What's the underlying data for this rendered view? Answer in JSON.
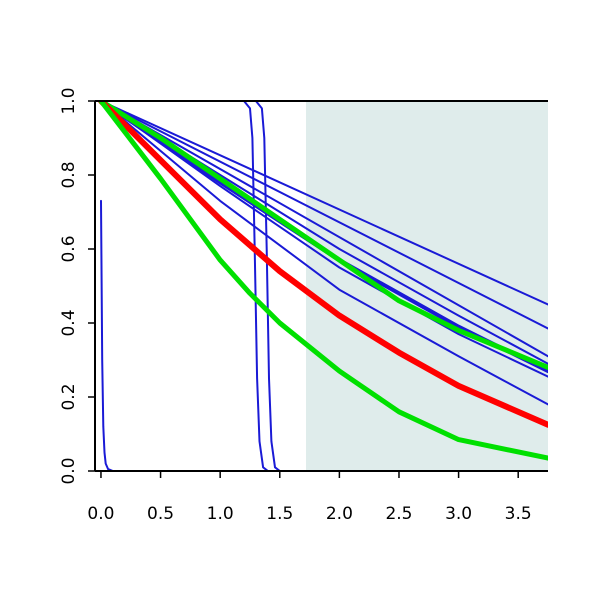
{
  "chart_data": {
    "type": "line",
    "title": "",
    "xlabel": "",
    "ylabel": "",
    "xlim": [
      -0.05,
      3.75
    ],
    "ylim": [
      0.0,
      1.0
    ],
    "grid": false,
    "x_ticks": [
      "0.0",
      "0.5",
      "1.0",
      "1.5",
      "2.0",
      "2.5",
      "3.0",
      "3.5"
    ],
    "y_ticks": [
      "0.0",
      "0.2",
      "0.4",
      "0.6",
      "0.8",
      "1.0"
    ],
    "shaded_region": {
      "x_from": 1.72,
      "x_to": 3.75,
      "color": "#dfeceb"
    },
    "colors": {
      "blue": "#1a1ad6",
      "red": "#ff0000",
      "green": "#00e000"
    },
    "series": [
      {
        "color": "blue",
        "width": 2,
        "x": [
          0.0,
          3.75
        ],
        "y": [
          1.0,
          0.45
        ]
      },
      {
        "color": "blue",
        "width": 2,
        "x": [
          0.0,
          3.75
        ],
        "y": [
          1.0,
          0.385
        ]
      },
      {
        "color": "blue",
        "width": 2,
        "x": [
          0.0,
          3.75
        ],
        "y": [
          1.0,
          0.31
        ]
      },
      {
        "color": "blue",
        "width": 2,
        "x": [
          0.0,
          1.0,
          2.0,
          3.0,
          3.75
        ],
        "y": [
          1.0,
          0.8,
          0.6,
          0.42,
          0.29
        ]
      },
      {
        "color": "blue",
        "width": 4,
        "x": [
          0.0,
          1.0,
          2.0,
          3.0,
          3.75
        ],
        "y": [
          1.0,
          0.78,
          0.57,
          0.39,
          0.27
        ]
      },
      {
        "color": "blue",
        "width": 2,
        "x": [
          0.0,
          1.0,
          2.0,
          3.0,
          3.75
        ],
        "y": [
          1.0,
          0.77,
          0.55,
          0.37,
          0.255
        ]
      },
      {
        "color": "blue",
        "width": 2,
        "x": [
          0.0,
          1.0,
          2.0,
          3.0,
          3.75
        ],
        "y": [
          1.0,
          0.73,
          0.49,
          0.31,
          0.18
        ]
      },
      {
        "color": "blue",
        "width": 2,
        "x": [
          0.0,
          0.01,
          0.02,
          0.03,
          0.04,
          0.06,
          0.1,
          3.75
        ],
        "y": [
          0.73,
          0.3,
          0.12,
          0.05,
          0.02,
          0.005,
          0.0,
          0.0
        ]
      },
      {
        "color": "blue",
        "width": 2,
        "x": [
          0.0,
          1.2,
          1.25,
          1.27,
          1.29,
          1.31,
          1.33,
          1.36,
          1.4,
          3.75
        ],
        "y": [
          1.0,
          1.0,
          0.98,
          0.9,
          0.6,
          0.25,
          0.08,
          0.01,
          0.0,
          0.0
        ]
      },
      {
        "color": "blue",
        "width": 2,
        "x": [
          0.0,
          1.3,
          1.35,
          1.37,
          1.39,
          1.41,
          1.43,
          1.46,
          1.5,
          3.75
        ],
        "y": [
          1.0,
          1.0,
          0.98,
          0.9,
          0.6,
          0.25,
          0.08,
          0.01,
          0.0,
          0.0
        ]
      },
      {
        "color": "green",
        "width": 5,
        "x": [
          0.0,
          0.5,
          1.0,
          1.5,
          2.0,
          2.5,
          3.0,
          3.75
        ],
        "y": [
          1.0,
          0.9,
          0.79,
          0.68,
          0.57,
          0.46,
          0.38,
          0.28
        ]
      },
      {
        "color": "red",
        "width": 6,
        "x": [
          0.0,
          0.5,
          1.0,
          1.5,
          2.0,
          2.5,
          3.0,
          3.75
        ],
        "y": [
          1.0,
          0.84,
          0.68,
          0.54,
          0.42,
          0.32,
          0.23,
          0.125
        ]
      },
      {
        "color": "green",
        "width": 5,
        "x": [
          0.0,
          0.5,
          1.0,
          1.25,
          1.5,
          2.0,
          2.5,
          3.0,
          3.75
        ],
        "y": [
          1.0,
          0.79,
          0.57,
          0.48,
          0.4,
          0.27,
          0.16,
          0.085,
          0.035
        ]
      }
    ]
  }
}
